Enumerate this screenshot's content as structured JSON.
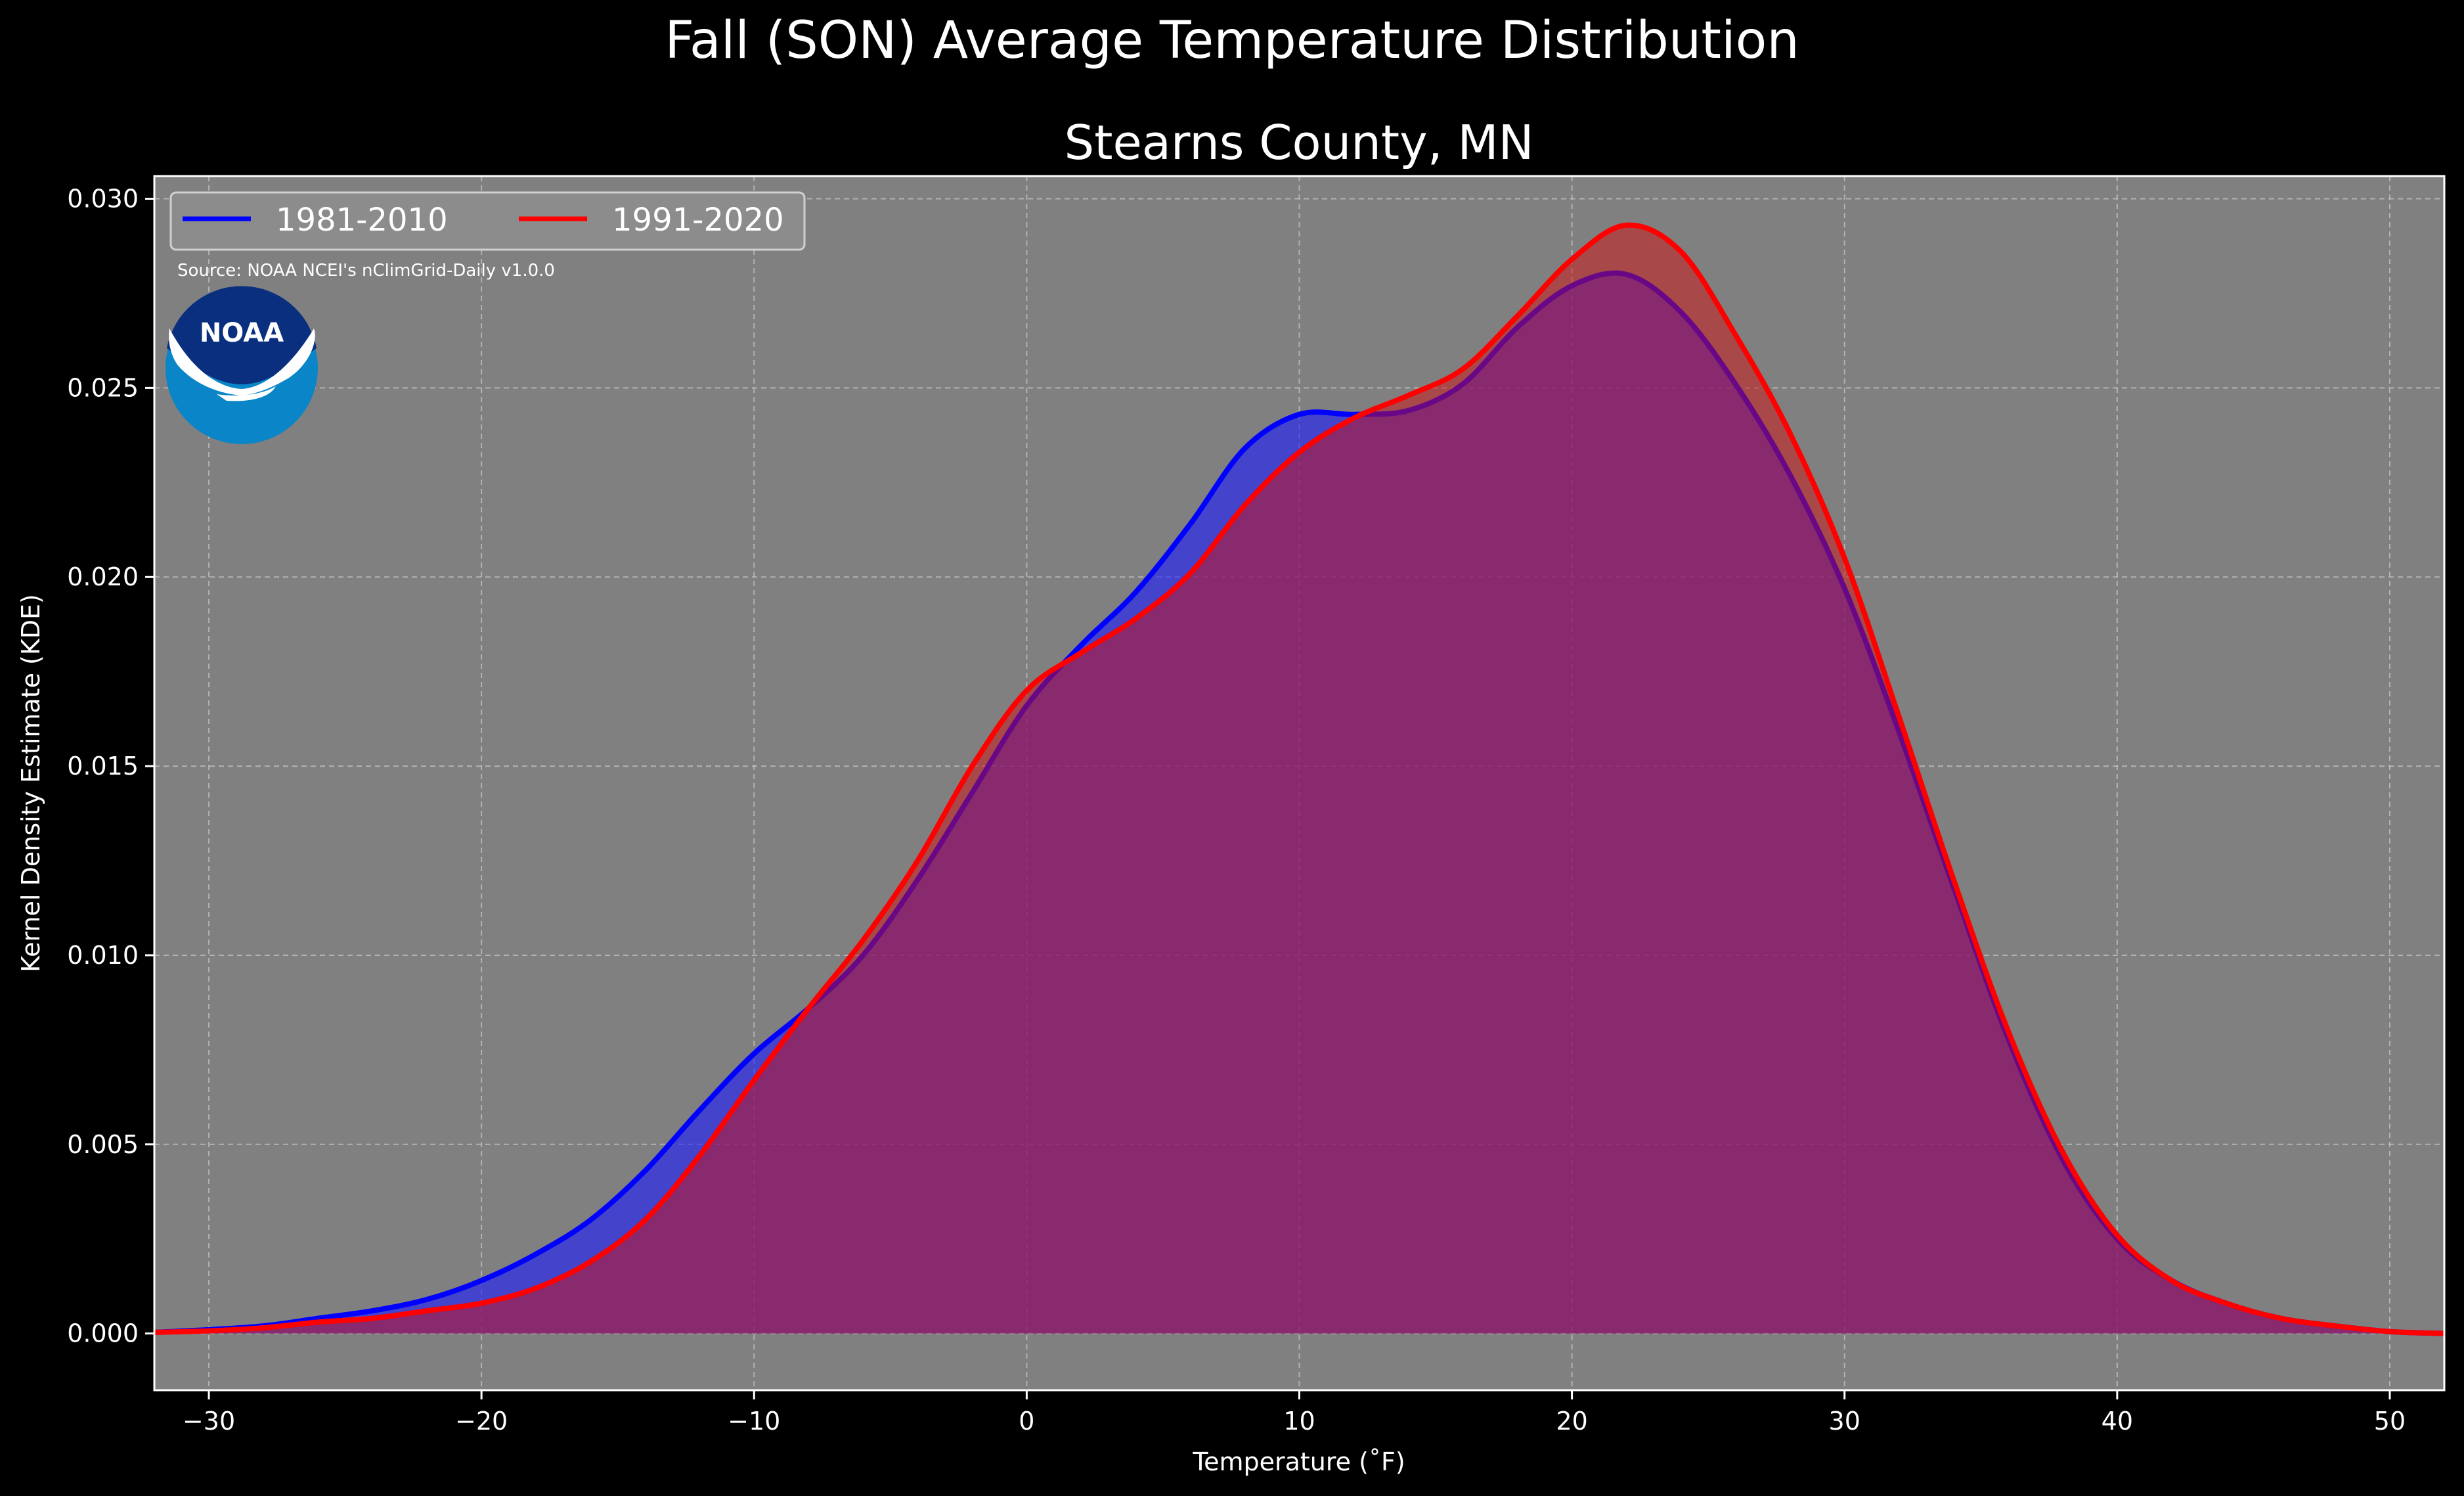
{
  "suptitle": "Fall (SON) Average Temperature Distribution",
  "chart_data": {
    "type": "area",
    "title": "Stearns County, MN",
    "xlabel": "Temperature (˚F)",
    "ylabel": "Kernel Density Estimate (KDE)",
    "xlim": [
      -32,
      52
    ],
    "ylim": [
      -0.0015,
      0.0306
    ],
    "xticks": [
      -30,
      -20,
      -10,
      0,
      10,
      20,
      30,
      40,
      50
    ],
    "yticks": [
      0.0,
      0.005,
      0.01,
      0.015,
      0.02,
      0.025,
      0.03
    ],
    "xtick_labels": [
      "−30",
      "−20",
      "−10",
      "0",
      "10",
      "20",
      "30",
      "40",
      "50"
    ],
    "ytick_labels": [
      "0.000",
      "0.005",
      "0.010",
      "0.015",
      "0.020",
      "0.025",
      "0.030"
    ],
    "grid": true,
    "legend_position": "top-left",
    "annotation": "Source: NOAA NCEI's nClimGrid-Daily v1.0.0",
    "logo_text": "NOAA",
    "x": [
      -32,
      -30,
      -28,
      -26,
      -24,
      -22,
      -20,
      -18,
      -16,
      -14,
      -12,
      -10,
      -8,
      -6,
      -4,
      -2,
      0,
      2,
      4,
      6,
      8,
      10,
      12,
      14,
      16,
      18,
      20,
      22,
      24,
      26,
      28,
      30,
      32,
      34,
      36,
      38,
      40,
      42,
      44,
      46,
      48,
      50,
      52
    ],
    "series": [
      {
        "name": "1981-2010",
        "color": "#0000ff",
        "values": [
          3e-05,
          0.0001,
          0.0002,
          0.0004,
          0.0006,
          0.0009,
          0.0014,
          0.0021,
          0.003,
          0.0043,
          0.0059,
          0.0074,
          0.0086,
          0.01,
          0.012,
          0.0143,
          0.0166,
          0.0182,
          0.0196,
          0.0214,
          0.0234,
          0.0243,
          0.0243,
          0.0244,
          0.0251,
          0.0266,
          0.0277,
          0.028,
          0.027,
          0.0251,
          0.0227,
          0.0197,
          0.0159,
          0.0118,
          0.0078,
          0.0046,
          0.0025,
          0.0014,
          0.0008,
          0.0004,
          0.0002,
          5e-05,
          0.0
        ]
      },
      {
        "name": "1991-2020",
        "color": "#ff0000",
        "values": [
          3e-05,
          7e-05,
          0.00015,
          0.0003,
          0.0004,
          0.0006,
          0.0008,
          0.0012,
          0.0019,
          0.003,
          0.0047,
          0.0067,
          0.0086,
          0.0104,
          0.0125,
          0.015,
          0.017,
          0.018,
          0.0189,
          0.0201,
          0.0219,
          0.0233,
          0.0242,
          0.0248,
          0.0255,
          0.0269,
          0.0284,
          0.0293,
          0.0286,
          0.0264,
          0.0238,
          0.0205,
          0.0163,
          0.012,
          0.008,
          0.0048,
          0.0026,
          0.0014,
          0.0008,
          0.0004,
          0.0002,
          5e-05,
          0.0
        ]
      }
    ]
  }
}
